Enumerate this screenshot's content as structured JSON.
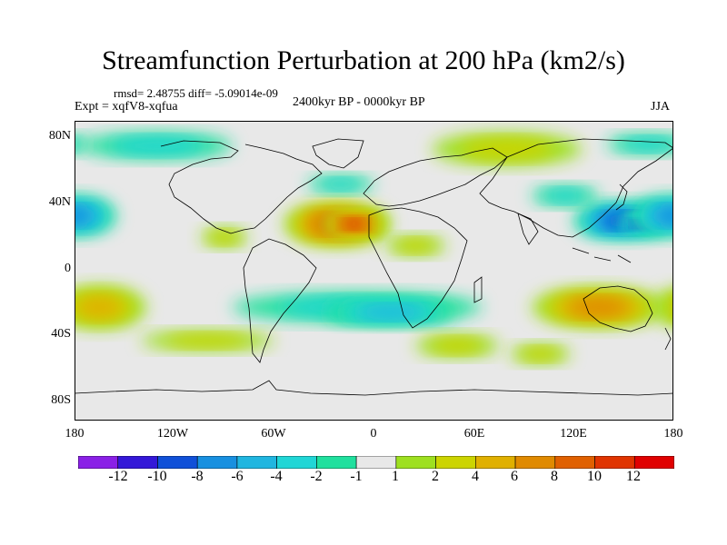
{
  "header": {
    "title": "Streamfunction Perturbation at 200 hPa (km2/s)",
    "stats": "rmsd= 2.48755 diff= -5.09014e-09",
    "experiment": "Expt = xqfV8-xqfua",
    "period": "2400kyr BP - 0000kyr BP",
    "season": "JJA"
  },
  "axes": {
    "lat_labels": [
      "80N",
      "40N",
      "0",
      "40S",
      "80S"
    ],
    "lon_labels": [
      "180",
      "120W",
      "60W",
      "0",
      "60E",
      "120E",
      "180"
    ]
  },
  "colorbar": {
    "labels": [
      "-12",
      "-10",
      "-8",
      "-6",
      "-4",
      "-2",
      "-1",
      "1",
      "2",
      "4",
      "6",
      "8",
      "10",
      "12"
    ],
    "colors": [
      "#8a20e6",
      "#3418d8",
      "#1050d8",
      "#1890e0",
      "#20b6e0",
      "#20d6d6",
      "#20e09e",
      "#e8e8e8",
      "#9ee020",
      "#ccd400",
      "#e0b000",
      "#e08a00",
      "#e06000",
      "#e03400",
      "#e00000"
    ]
  },
  "map_data": {
    "projection": "cylindrical equidistant",
    "domain": {
      "lon": [
        -180,
        180
      ],
      "lat": [
        -90,
        90
      ]
    },
    "blobs": [
      {
        "name": "north-atlantic-africa-high",
        "lon": -22,
        "lat": 28,
        "rlon": 32,
        "rlat": 13,
        "value": 9
      },
      {
        "name": "north-atlantic-high-core",
        "lon": -12,
        "lat": 28,
        "rlon": 18,
        "rlat": 7,
        "value": 11
      },
      {
        "name": "north-pacific-west-low",
        "lon": 150,
        "lat": 30,
        "rlon": 30,
        "rlat": 11,
        "value": -8
      },
      {
        "name": "north-pacific-west-low-core",
        "lon": 160,
        "lat": 28,
        "rlon": 12,
        "rlat": 5,
        "value": -10
      },
      {
        "name": "north-pacific-east-low",
        "lon": -180,
        "lat": 33,
        "rlon": 25,
        "rlat": 12,
        "value": -6
      },
      {
        "name": "south-pacific-high",
        "lon": -165,
        "lat": -22,
        "rlon": 28,
        "rlat": 13,
        "value": 5
      },
      {
        "name": "southern-midlat-low",
        "lon": -10,
        "lat": -22,
        "rlon": 75,
        "rlat": 9,
        "value": -3
      },
      {
        "name": "south-atlantic-low",
        "lon": 10,
        "lat": -25,
        "rlon": 40,
        "rlat": 8,
        "value": -4
      },
      {
        "name": "australia-high",
        "lon": 135,
        "lat": -22,
        "rlon": 40,
        "rlat": 12,
        "value": 6
      },
      {
        "name": "arctic-canada-low",
        "lon": -130,
        "lat": 75,
        "rlon": 45,
        "rlat": 8,
        "value": -2
      },
      {
        "name": "arctic-siberia-high",
        "lon": 80,
        "lat": 73,
        "rlon": 45,
        "rlat": 10,
        "value": 3
      },
      {
        "name": "arctic-pacific-low",
        "lon": 165,
        "lat": 76,
        "rlon": 25,
        "rlat": 6,
        "value": -2
      },
      {
        "name": "europe-low",
        "lon": -20,
        "lat": 52,
        "rlon": 20,
        "rlat": 5,
        "value": -2
      },
      {
        "name": "asia-midlat-low",
        "lon": 115,
        "lat": 45,
        "rlon": 20,
        "rlat": 6,
        "value": -2
      },
      {
        "name": "indian-ocean-high",
        "lon": 50,
        "lat": -45,
        "rlon": 25,
        "rlat": 7,
        "value": 3
      },
      {
        "name": "south-pacific-east-high",
        "lon": -100,
        "lat": -42,
        "rlon": 40,
        "rlat": 6,
        "value": 2
      },
      {
        "name": "southern-ocean-east-high",
        "lon": 100,
        "lat": -50,
        "rlon": 18,
        "rlat": 6,
        "value": 2
      },
      {
        "name": "central-america-high",
        "lon": -90,
        "lat": 20,
        "rlon": 14,
        "rlat": 6,
        "value": 2
      },
      {
        "name": "north-africa-rim",
        "lon": 25,
        "lat": 15,
        "rlon": 18,
        "rlat": 6,
        "value": 2
      }
    ]
  }
}
